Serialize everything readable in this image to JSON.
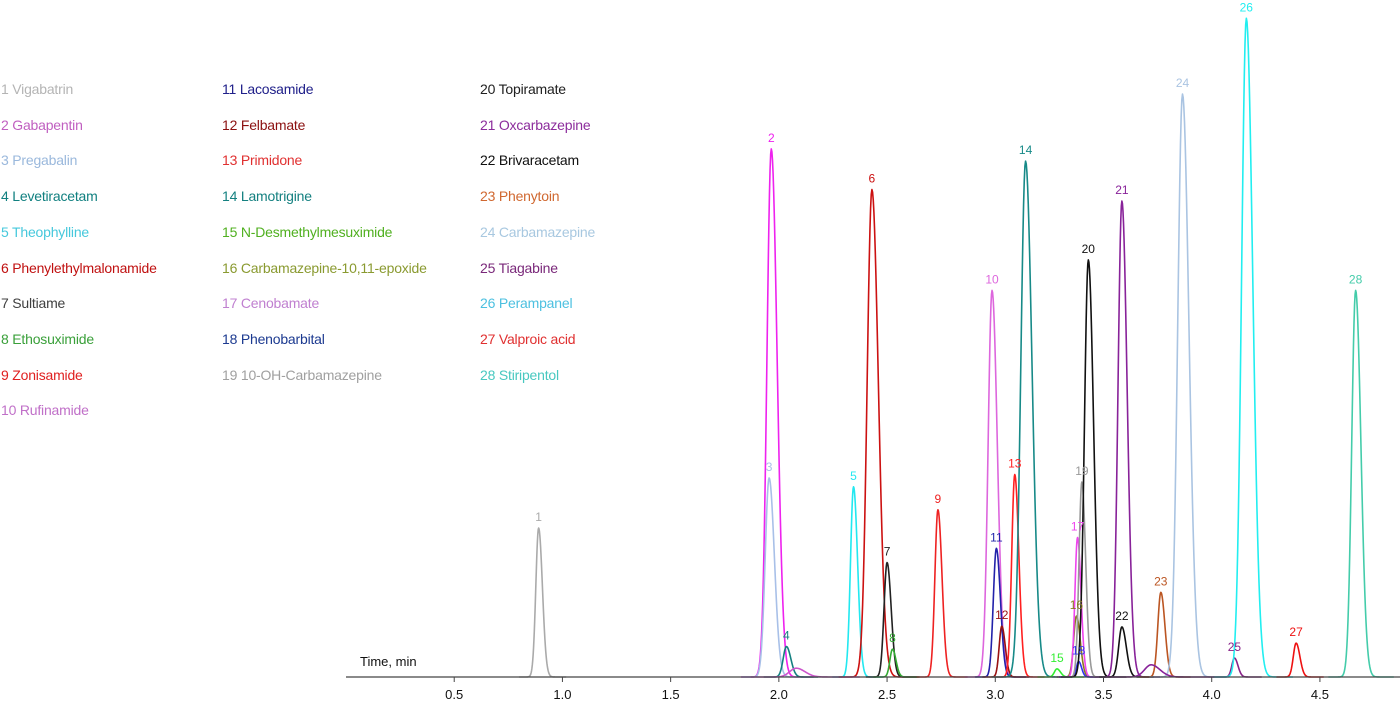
{
  "chart_data": {
    "type": "line",
    "xlabel": "Time, min",
    "ylabel": "",
    "xlim": [
      0.0,
      4.87
    ],
    "ylim": [
      0,
      100
    ],
    "x_ticks": [
      "0.5",
      "1.0",
      "1.5",
      "2.0",
      "2.5",
      "3.0",
      "3.5",
      "4.0",
      "4.5"
    ],
    "grid": false,
    "legend_position": "top-left",
    "legend": [
      [
        "1 Vigabatrin",
        "2 Gabapentin",
        "3 Pregabalin",
        "4 Levetiracetam",
        "5 Theophylline",
        "6 Phenylethylmalonamide",
        "7 Sultiame",
        "8 Ethosuximide",
        "9 Zonisamide",
        "10 Rufinamide"
      ],
      [
        "11 Lacosamide",
        "12 Felbamate",
        "13 Primidone",
        "14 Lamotrigine",
        "15 N-Desmethylmesuximide",
        "16 Carbamazepine-10,11-epoxide",
        "17 Cenobamate",
        "18 Phenobarbital",
        "19 10-OH-Carbamazepine"
      ],
      [
        "20 Topiramate",
        "21 Oxcarbazepine",
        "22 Brivaracetam",
        "23 Phenytoin",
        "24 Carbamazepine",
        "25 Tiagabine",
        "26 Perampanel",
        "27 Valproic acid",
        "28 Stiripentol"
      ]
    ],
    "legend_colors": [
      [
        "#b4b4b4",
        "#c05fc0",
        "#9ab8dc",
        "#118080",
        "#46c8dc",
        "#c01010",
        "#404040",
        "#3aa03a",
        "#e02020",
        "#c070c8"
      ],
      [
        "#20208a",
        "#8b1010",
        "#e03030",
        "#148080",
        "#50b020",
        "#8a9a30",
        "#c080d0",
        "#1c3a90",
        "#a0a0a0"
      ],
      [
        "#202020",
        "#8c2c9c",
        "#101010",
        "#d06830",
        "#a8c8e0",
        "#7a287a",
        "#4cc0e0",
        "#e03030",
        "#48c8c0"
      ]
    ],
    "series": [
      {
        "label": "1",
        "color": "#aaaaaa",
        "rt": 0.89,
        "height": 22.0,
        "width": 0.013
      },
      {
        "label": "2",
        "color": "#ee22ee",
        "rt": 1.965,
        "height": 78.0,
        "width": 0.02
      },
      {
        "label": "3",
        "color": "#a8c0e8",
        "rt": 1.955,
        "height": 29.4,
        "width": 0.018
      },
      {
        "label": "4",
        "color": "#138080",
        "rt": 2.035,
        "height": 4.5,
        "width": 0.015
      },
      {
        "label": "5",
        "color": "#22e8f0",
        "rt": 2.345,
        "height": 28.1,
        "width": 0.014
      },
      {
        "label": "6",
        "color": "#cc1111",
        "rt": 2.43,
        "height": 72.0,
        "width": 0.022
      },
      {
        "label": "7",
        "color": "#222222",
        "rt": 2.5,
        "height": 16.9,
        "width": 0.014
      },
      {
        "label": "8",
        "color": "#33aa33",
        "rt": 2.525,
        "height": 4.1,
        "width": 0.012
      },
      {
        "label": "9",
        "color": "#ee2222",
        "rt": 2.735,
        "height": 24.7,
        "width": 0.014
      },
      {
        "label": "10",
        "color": "#dd66dd",
        "rt": 2.985,
        "height": 57.1,
        "width": 0.018
      },
      {
        "label": "11",
        "color": "#2222aa",
        "rt": 3.005,
        "height": 19.0,
        "width": 0.014
      },
      {
        "label": "12",
        "color": "#991111",
        "rt": 3.03,
        "height": 7.5,
        "width": 0.012
      },
      {
        "label": "13",
        "color": "#ff2020",
        "rt": 3.09,
        "height": 29.9,
        "width": 0.014
      },
      {
        "label": "14",
        "color": "#178a88",
        "rt": 3.14,
        "height": 76.2,
        "width": 0.022
      },
      {
        "label": "15",
        "color": "#33ee33",
        "rt": 3.285,
        "height": 1.2,
        "width": 0.012
      },
      {
        "label": "16",
        "color": "#8a7a20",
        "rt": 3.375,
        "height": 9.0,
        "width": 0.013
      },
      {
        "label": "17",
        "color": "#ee44ee",
        "rt": 3.38,
        "height": 20.6,
        "width": 0.012
      },
      {
        "label": "18",
        "color": "#3333ee",
        "rt": 3.385,
        "height": 2.3,
        "width": 0.01
      },
      {
        "label": "19",
        "color": "#999999",
        "rt": 3.4,
        "height": 28.8,
        "width": 0.013
      },
      {
        "label": "20",
        "color": "#111111",
        "rt": 3.43,
        "height": 61.6,
        "width": 0.018
      },
      {
        "label": "21",
        "color": "#882299",
        "rt": 3.585,
        "height": 70.3,
        "width": 0.018
      },
      {
        "label": "22",
        "color": "#111111",
        "rt": 3.585,
        "height": 7.4,
        "width": 0.015
      },
      {
        "label": "23",
        "color": "#bb5522",
        "rt": 3.765,
        "height": 12.5,
        "width": 0.014
      },
      {
        "label": "24",
        "color": "#aac4e2",
        "rt": 3.865,
        "height": 86.1,
        "width": 0.022
      },
      {
        "label": "25",
        "color": "#882288",
        "rt": 4.105,
        "height": 2.8,
        "width": 0.012
      },
      {
        "label": "26",
        "color": "#22eef0",
        "rt": 4.16,
        "height": 97.3,
        "width": 0.022
      },
      {
        "label": "27",
        "color": "#ee1111",
        "rt": 4.39,
        "height": 5.0,
        "width": 0.013
      },
      {
        "label": "28",
        "color": "#44ccaa",
        "rt": 4.665,
        "height": 57.1,
        "width": 0.018
      },
      {
        "label": "",
        "color": "#882299",
        "rt": 3.72,
        "height": 1.8,
        "width": 0.03
      },
      {
        "label": "",
        "color": "#cc55cc",
        "rt": 2.08,
        "height": 1.3,
        "width": 0.03
      }
    ]
  }
}
